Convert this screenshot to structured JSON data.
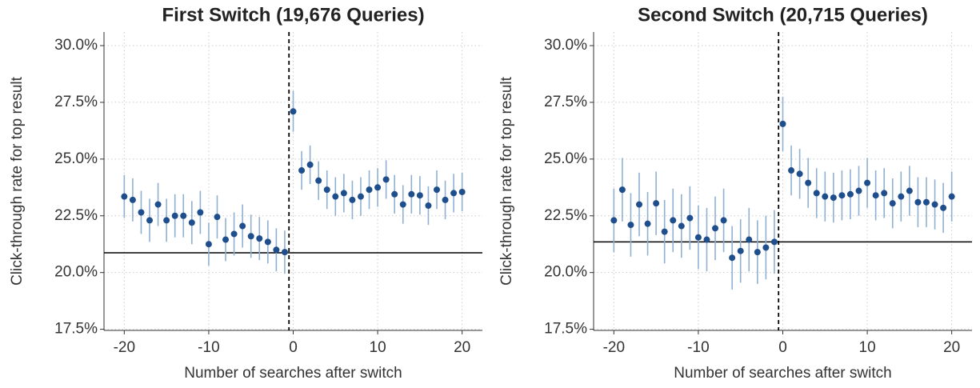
{
  "chart_data": [
    {
      "type": "scatter",
      "title": "First Switch (19,676 Queries)",
      "x_label": "Number of searches after switch",
      "y_label": "Click-through rate for top result",
      "x": [
        -20,
        -19,
        -18,
        -17,
        -16,
        -15,
        -14,
        -13,
        -12,
        -11,
        -10,
        -9,
        -8,
        -7,
        -6,
        -5,
        -4,
        -3,
        -2,
        -1,
        0,
        1,
        2,
        3,
        4,
        5,
        6,
        7,
        8,
        9,
        10,
        11,
        12,
        13,
        14,
        15,
        16,
        17,
        18,
        19,
        20
      ],
      "values": [
        23.35,
        23.2,
        22.65,
        22.3,
        23.0,
        22.3,
        22.5,
        22.5,
        22.2,
        22.65,
        21.25,
        22.45,
        21.45,
        21.7,
        22.05,
        21.6,
        21.5,
        21.35,
        21.0,
        20.9,
        27.1,
        24.5,
        24.75,
        24.05,
        23.65,
        23.35,
        23.5,
        23.2,
        23.35,
        23.65,
        23.75,
        24.1,
        23.45,
        23.0,
        23.45,
        23.4,
        22.95,
        23.65,
        23.2,
        23.5,
        23.55
      ],
      "errors": [
        0.95,
        0.95,
        0.95,
        0.95,
        0.95,
        0.95,
        0.95,
        0.95,
        0.95,
        0.95,
        0.95,
        0.95,
        0.95,
        0.95,
        0.95,
        0.95,
        0.95,
        0.95,
        0.95,
        0.95,
        0.9,
        0.85,
        0.85,
        0.85,
        0.85,
        0.85,
        0.85,
        0.85,
        0.85,
        0.85,
        0.85,
        0.85,
        0.85,
        0.85,
        0.85,
        0.85,
        0.85,
        0.85,
        0.85,
        0.85,
        0.85
      ],
      "color": "#1f4e8c",
      "error_color": "#8fb0d3",
      "hline": 20.87,
      "vline": -0.5,
      "xlim": [
        -22.4,
        22.4
      ],
      "ylim": [
        17.45,
        30.6
      ],
      "xticks": [
        -20,
        -10,
        0,
        10,
        20
      ],
      "yticks": [
        {
          "value": 17.5,
          "label": "17.5%"
        },
        {
          "value": 20,
          "label": "20.0%"
        },
        {
          "value": 22.5,
          "label": "22.5%"
        },
        {
          "value": 25,
          "label": "25.0%"
        },
        {
          "value": 27.5,
          "label": "27.5%"
        },
        {
          "value": 30,
          "label": "30.0%"
        }
      ],
      "grid": true
    },
    {
      "type": "scatter",
      "title": "Second Switch (20,715 Queries)",
      "x_label": "Number of searches after switch",
      "y_label": "Click-through rate for top result",
      "x": [
        -20,
        -19,
        -18,
        -17,
        -16,
        -15,
        -14,
        -13,
        -12,
        -11,
        -10,
        -9,
        -8,
        -7,
        -6,
        -5,
        -4,
        -3,
        -2,
        -1,
        0,
        1,
        2,
        3,
        4,
        5,
        6,
        7,
        8,
        9,
        10,
        11,
        12,
        13,
        14,
        15,
        16,
        17,
        18,
        19,
        20
      ],
      "values": [
        22.3,
        23.65,
        22.1,
        23.0,
        22.15,
        23.05,
        21.8,
        22.3,
        22.05,
        22.4,
        21.55,
        21.45,
        21.95,
        22.3,
        20.65,
        20.95,
        21.45,
        20.9,
        21.1,
        21.35,
        26.55,
        24.5,
        24.35,
        23.95,
        23.5,
        23.35,
        23.3,
        23.4,
        23.45,
        23.6,
        23.95,
        23.4,
        23.5,
        23.05,
        23.35,
        23.6,
        23.1,
        23.1,
        23.0,
        22.85,
        23.35
      ],
      "errors": [
        1.4,
        1.4,
        1.4,
        1.4,
        1.4,
        1.4,
        1.4,
        1.4,
        1.4,
        1.4,
        1.4,
        1.4,
        1.4,
        1.4,
        1.4,
        1.4,
        1.4,
        1.4,
        1.4,
        1.4,
        1.2,
        1.1,
        1.1,
        1.1,
        1.1,
        1.1,
        1.1,
        1.1,
        1.1,
        1.1,
        1.1,
        1.1,
        1.1,
        1.1,
        1.1,
        1.1,
        1.1,
        1.1,
        1.1,
        1.1,
        1.1
      ],
      "color": "#1f4e8c",
      "error_color": "#8fb0d3",
      "hline": 21.35,
      "vline": -0.5,
      "xlim": [
        -22.4,
        22.4
      ],
      "ylim": [
        17.45,
        30.6
      ],
      "xticks": [
        -20,
        -10,
        0,
        10,
        20
      ],
      "yticks": [
        {
          "value": 17.5,
          "label": "17.5%"
        },
        {
          "value": 20,
          "label": "20.0%"
        },
        {
          "value": 22.5,
          "label": "22.5%"
        },
        {
          "value": 25,
          "label": "25.0%"
        },
        {
          "value": 27.5,
          "label": "27.5%"
        },
        {
          "value": 30,
          "label": "30.0%"
        }
      ],
      "grid": true
    }
  ]
}
